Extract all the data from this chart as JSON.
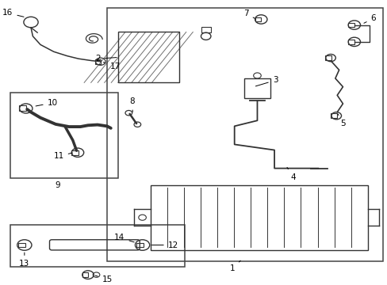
{
  "bg_color": "#ffffff",
  "line_color": "#333333",
  "box_line_color": "#444444",
  "fig_width": 4.89,
  "fig_height": 3.6,
  "dpi": 100
}
